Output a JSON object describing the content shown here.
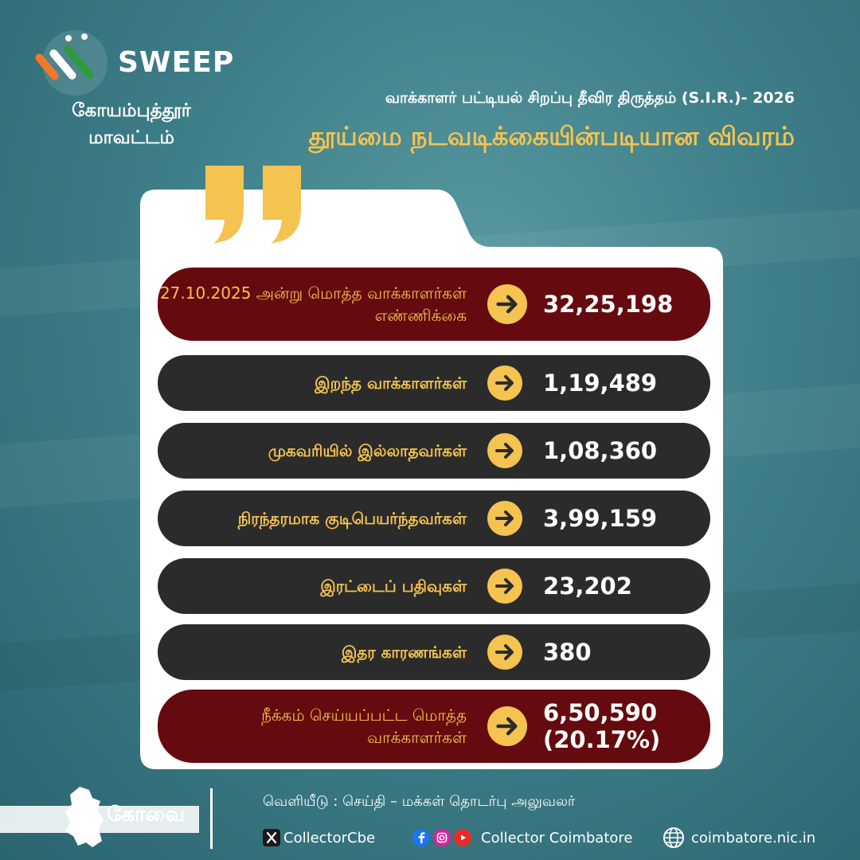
{
  "branding": {
    "sveep_text": "SWEEP",
    "district": "கோயம்புத்தூர் மாவட்டம்",
    "logo_icon": "election-commission-logo-icon"
  },
  "header": {
    "subtitle": "வாக்காளர் பட்டியல் சிறப்பு தீவிர திருத்தம் (S.I.R.)- 2026",
    "title": "தூய்மை நடவடிக்கையின்படியான விவரம்"
  },
  "rows": [
    {
      "label": "27.10.2025 அன்று மொத்த வாக்காளர்கள் எண்ணிக்கை",
      "value": "32,25,198",
      "value_sub": ""
    },
    {
      "label": "இறந்த வாக்காளர்கள்",
      "value": "1,19,489",
      "value_sub": ""
    },
    {
      "label": "முகவரியில் இல்லாதவர்கள்",
      "value": "1,08,360",
      "value_sub": ""
    },
    {
      "label": "நிரந்தரமாக குடிபெயர்ந்தவர்கள்",
      "value": "3,99,159",
      "value_sub": ""
    },
    {
      "label": "இரட்டைப் பதிவுகள்",
      "value": "23,202",
      "value_sub": ""
    },
    {
      "label": "இதர காரணங்கள்",
      "value": "380",
      "value_sub": ""
    },
    {
      "label": "நீக்கம் செய்யப்பட்ட மொத்த வாக்காளர்கள்",
      "value": "6,50,590",
      "value_sub": "(20.17%)"
    }
  ],
  "footer": {
    "district_short": "கோவை",
    "release": "வெளியீடு : செய்தி – மக்கள் தொடர்பு அலுவலர்",
    "x_handle": "CollectorCbe",
    "social_handle": "Collector Coimbatore",
    "website": "coimbatore.nic.in"
  },
  "colors": {
    "gold": "#f4c350",
    "maroon": "#650b0f",
    "dark_row": "#2b2b2b",
    "teal_bg": "#3f7f89"
  }
}
